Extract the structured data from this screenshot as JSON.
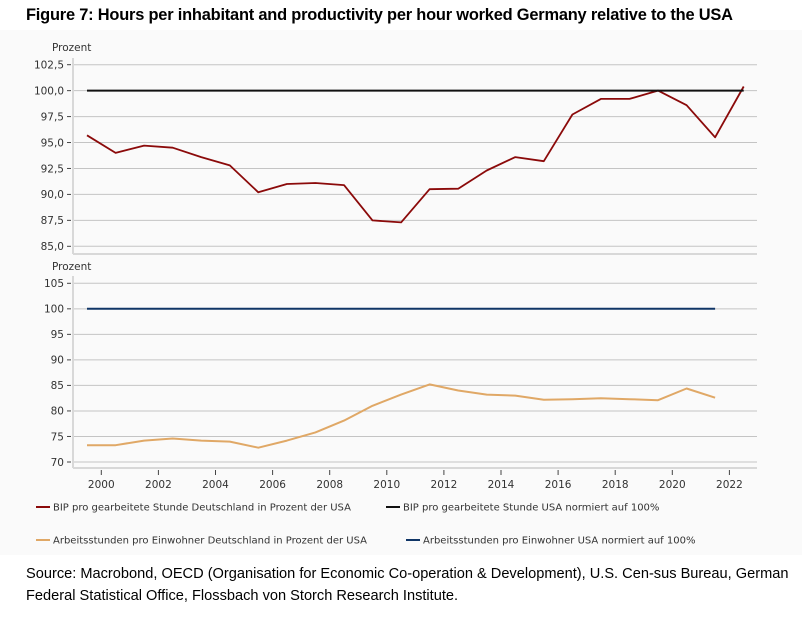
{
  "title": "Figure 7: Hours per inhabitant and productivity per hour worked Germany relative to the USA",
  "source": "Source: Macrobond, OECD (Organisation for Economic Co-operation & Development), U.S. Cen-sus Bureau, German Federal Statistical Office, Flossbach von Storch Research Institute.",
  "colors": {
    "bip_de": "#8b0a0a",
    "bip_usa": "#111111",
    "hours_de": "#e0a866",
    "hours_usa": "#0f3566",
    "grid": "#c4c4c4",
    "axis": "#d8d8d8"
  },
  "chart_data": [
    {
      "type": "line",
      "title": "",
      "ylabel": "Prozent",
      "xlabel": "",
      "ylim": [
        85.0,
        102.5
      ],
      "yticks": [
        "85,0",
        "87,5",
        "90,0",
        "92,5",
        "95,0",
        "97,5",
        "100,0",
        "102,5"
      ],
      "ytick_values": [
        85.0,
        87.5,
        90.0,
        92.5,
        95.0,
        97.5,
        100.0,
        102.5
      ],
      "grid": true,
      "x": [
        1999.5,
        2000.5,
        2001.5,
        2002.5,
        2003.5,
        2004.5,
        2005.5,
        2006.5,
        2007.5,
        2008.5,
        2009.5,
        2010.5,
        2011.5,
        2012.5,
        2013.5,
        2014.5,
        2015.5,
        2016.5,
        2017.5,
        2018.5,
        2019.5,
        2020.5,
        2021.5,
        2022.5
      ],
      "series": [
        {
          "name": "BIP pro gearbeitete Stunde Deutschland in Prozent der USA",
          "color_key": "bip_de",
          "values": [
            95.7,
            94.0,
            94.7,
            94.5,
            93.6,
            92.8,
            90.2,
            91.0,
            91.1,
            90.9,
            87.5,
            87.3,
            90.5,
            90.55,
            92.3,
            93.6,
            93.2,
            97.7,
            99.2,
            99.2,
            100.0,
            98.6,
            95.5,
            100.4
          ]
        },
        {
          "name": "BIP pro gearbeitete Stunde USA normiert auf 100%",
          "color_key": "bip_usa",
          "values": [
            100,
            100,
            100,
            100,
            100,
            100,
            100,
            100,
            100,
            100,
            100,
            100,
            100,
            100,
            100,
            100,
            100,
            100,
            100,
            100,
            100,
            100,
            100,
            100
          ]
        }
      ]
    },
    {
      "type": "line",
      "title": "",
      "ylabel": "Prozent",
      "xlabel": "",
      "ylim": [
        70,
        105
      ],
      "yticks": [
        "70",
        "75",
        "80",
        "85",
        "90",
        "95",
        "100",
        "105"
      ],
      "ytick_values": [
        70,
        75,
        80,
        85,
        90,
        95,
        100,
        105
      ],
      "grid": true,
      "xlim": [
        1998.5,
        2023.5
      ],
      "xticks": [
        "2000",
        "2002",
        "2004",
        "2006",
        "2008",
        "2010",
        "2012",
        "2014",
        "2016",
        "2018",
        "2020",
        "2022"
      ],
      "xtick_values": [
        2000,
        2002,
        2004,
        2006,
        2008,
        2010,
        2012,
        2014,
        2016,
        2018,
        2020,
        2022
      ],
      "x": [
        1999.5,
        2000.5,
        2001.5,
        2002.5,
        2003.5,
        2004.5,
        2005.5,
        2006.5,
        2007.5,
        2008.5,
        2009.5,
        2010.5,
        2011.5,
        2012.5,
        2013.5,
        2014.5,
        2015.5,
        2016.5,
        2017.5,
        2018.5,
        2019.5,
        2020.5,
        2021.5
      ],
      "series": [
        {
          "name": "Arbeitsstunden pro Einwohner Deutschland in Prozent der USA",
          "color_key": "hours_de",
          "values": [
            73.3,
            73.3,
            74.2,
            74.6,
            74.2,
            74.0,
            72.8,
            74.2,
            75.8,
            78.1,
            81.0,
            83.2,
            85.2,
            84.0,
            83.2,
            83.0,
            82.2,
            82.3,
            82.5,
            82.3,
            82.1,
            84.4,
            82.6
          ]
        },
        {
          "name": "Arbeitsstunden pro Einwohner USA normiert auf 100%",
          "color_key": "hours_usa",
          "values": [
            100,
            100,
            100,
            100,
            100,
            100,
            100,
            100,
            100,
            100,
            100,
            100,
            100,
            100,
            100,
            100,
            100,
            100,
            100,
            100,
            100,
            100,
            100
          ]
        }
      ]
    }
  ],
  "legend": {
    "placement": "bottom",
    "items": [
      {
        "label": "BIP pro gearbeitete Stunde Deutschland in Prozent der USA",
        "color_key": "bip_de"
      },
      {
        "label": "BIP pro gearbeitete Stunde USA normiert auf 100%",
        "color_key": "bip_usa"
      },
      {
        "label": "Arbeitsstunden pro Einwohner Deutschland in Prozent der USA",
        "color_key": "hours_de"
      },
      {
        "label": "Arbeitsstunden pro Einwohner USA normiert auf 100%",
        "color_key": "hours_usa"
      }
    ]
  }
}
